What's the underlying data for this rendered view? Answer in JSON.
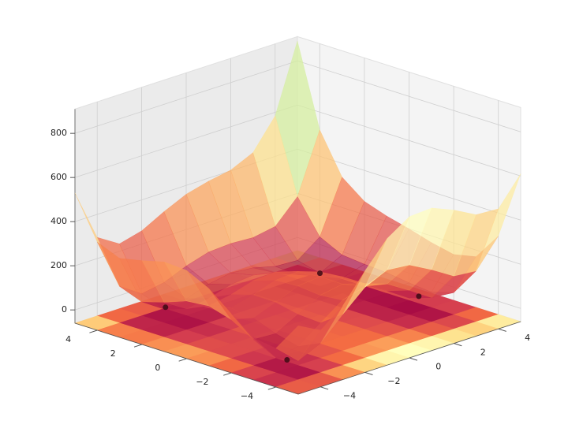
{
  "chart_data": {
    "type": "surface",
    "x": [
      -5,
      -4,
      -3,
      -2,
      -1,
      0,
      1,
      2,
      3,
      4,
      5
    ],
    "y": [
      -5,
      -4,
      -3,
      -2,
      -1,
      0,
      1,
      2,
      3,
      4,
      5
    ],
    "z": [
      [
        250,
        196,
        274,
        400,
        514,
        580,
        586,
        544,
        490,
        484,
        610
      ],
      [
        116,
        26,
        72,
        170,
        260,
        306,
        296,
        242,
        180,
        170,
        296
      ],
      [
        130,
        8,
        26,
        100,
        170,
        200,
        178,
        116,
        50,
        40,
        170
      ],
      [
        208,
        58,
        52,
        106,
        160,
        178,
        148,
        82,
        16,
        10,
        148
      ],
      [
        290,
        116,
        90,
        128,
        170,
        180,
        146,
        80,
        18,
        20,
        170
      ],
      [
        340,
        146,
        104,
        130,
        164,
        170,
        136,
        74,
        20,
        34,
        200
      ],
      [
        346,
        136,
        82,
        100,
        130,
        136,
        106,
        52,
        10,
        40,
        226
      ],
      [
        320,
        98,
        36,
        50,
        80,
        90,
        68,
        26,
        0,
        50,
        260
      ],
      [
        298,
        68,
        2,
        16,
        50,
        68,
        58,
        32,
        26,
        100,
        338
      ],
      [
        340,
        106,
        40,
        58,
        100,
        130,
        136,
        130,
        148,
        250,
        520
      ],
      [
        530,
        296,
        234,
        260,
        314,
        360,
        386,
        404,
        450,
        584,
        890
      ]
    ],
    "xlim": [
      -5,
      5
    ],
    "ylim": [
      -5,
      5
    ],
    "zlim": [
      -60,
      910
    ],
    "xticks": [
      {
        "value": -4,
        "label": "−4"
      },
      {
        "value": -2,
        "label": "−2"
      },
      0,
      2,
      4
    ],
    "yticks": [
      {
        "value": -4,
        "label": "−4"
      },
      {
        "value": -2,
        "label": "−2"
      },
      0,
      2,
      4
    ],
    "zticks": [
      0,
      200,
      400,
      600,
      800
    ],
    "colormap": "Spectral",
    "floor_contour": true,
    "grid": true,
    "minima": {
      "x": [
        3,
        -2.805,
        -3.779,
        3.584
      ],
      "y": [
        2,
        3.131,
        -3.283,
        -1.848
      ],
      "z": [
        0,
        0,
        0,
        0
      ]
    },
    "minima_color": "#3b0a14"
  }
}
